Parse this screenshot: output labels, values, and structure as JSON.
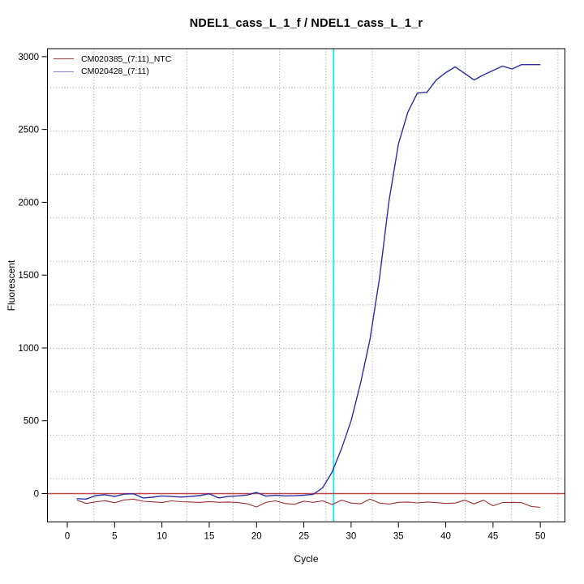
{
  "chart_data": {
    "type": "line",
    "title": "NDEL1_cass_L_1_f / NDEL1_cass_L_1_r",
    "xlabel": "Cycle",
    "ylabel": "Fluorescent",
    "x_ticks": [
      0,
      5,
      10,
      15,
      20,
      25,
      30,
      35,
      40,
      45,
      50
    ],
    "y_ticks": [
      0,
      500,
      1000,
      1500,
      2000,
      2500,
      3000
    ],
    "xlim": [
      -2.1,
      52.6
    ],
    "ylim": [
      -195,
      3055
    ],
    "grid": "dotted",
    "legend_position": "top-left",
    "threshold_line": {
      "y": 0,
      "color": "#c04545"
    },
    "ct_line": {
      "x": 28.15,
      "color": "#2ee8ee"
    },
    "x": [
      1,
      2,
      3,
      4,
      5,
      6,
      7,
      8,
      9,
      10,
      11,
      12,
      13,
      14,
      15,
      16,
      17,
      18,
      19,
      20,
      21,
      22,
      23,
      24,
      25,
      26,
      27,
      28,
      29,
      30,
      31,
      32,
      33,
      34,
      35,
      36,
      37,
      38,
      39,
      40,
      41,
      42,
      43,
      44,
      45,
      46,
      47,
      48,
      49,
      50
    ],
    "series": [
      {
        "name": "CM020385_(7:11)_NTC",
        "color": "#993333",
        "legend_color": "#a94040",
        "values": [
          -45,
          -68,
          -57,
          -49,
          -63,
          -44,
          -38,
          -53,
          -57,
          -62,
          -50,
          -56,
          -58,
          -61,
          -55,
          -60,
          -58,
          -62,
          -70,
          -92,
          -60,
          -50,
          -68,
          -74,
          -52,
          -60,
          -50,
          -75,
          -45,
          -65,
          -70,
          -38,
          -65,
          -72,
          -60,
          -58,
          -64,
          -58,
          -62,
          -68,
          -65,
          -46,
          -71,
          -46,
          -84,
          -62,
          -60,
          -62,
          -88,
          -95
        ]
      },
      {
        "name": "CM020428_(7:11)",
        "color": "#2d2da3",
        "legend_color": "#8a8acc",
        "values": [
          -35,
          -38,
          -14,
          -8,
          -20,
          -4,
          -2,
          -30,
          -25,
          -16,
          -20,
          -24,
          -20,
          -14,
          -2,
          -30,
          -20,
          -16,
          -10,
          8,
          -18,
          -12,
          -16,
          -15,
          -12,
          -5,
          40,
          150,
          310,
          500,
          760,
          1060,
          1480,
          2010,
          2400,
          2620,
          2750,
          2755,
          2840,
          2890,
          2930,
          2885,
          2840,
          2875,
          2905,
          2935,
          2915,
          2945,
          2945,
          2945
        ]
      }
    ]
  }
}
